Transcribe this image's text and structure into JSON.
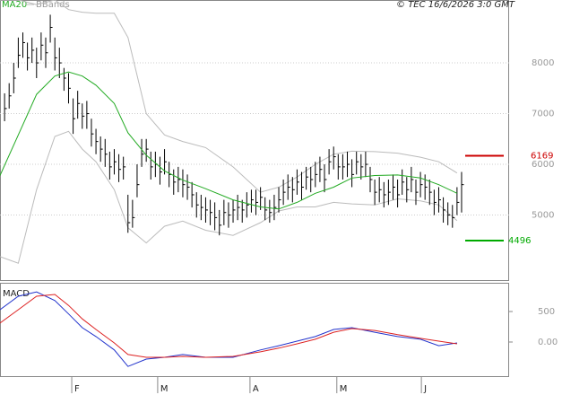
{
  "chart_data": [
    {
      "type": "ohlc",
      "source": "© TEC 16/6/2026 3:0 GMT",
      "xlim": [
        -1,
        110.4
      ],
      "ylim": [
        3700,
        9240
      ],
      "yticks": [
        5000,
        6000,
        7000,
        8000
      ],
      "grid": true,
      "color": "#000000",
      "close": [
        7100,
        7350,
        7700,
        8150,
        8400,
        8100,
        8250,
        8000,
        8350,
        8200,
        8700,
        8100,
        8000,
        7700,
        7500,
        6900,
        7200,
        6950,
        7000,
        6600,
        6450,
        6300,
        6200,
        5950,
        6050,
        5900,
        5950,
        4850,
        4950,
        5600,
        6200,
        6300,
        5950,
        6000,
        5850,
        6050,
        5800,
        5650,
        5700,
        5600,
        5550,
        5400,
        5200,
        5150,
        5100,
        5050,
        4950,
        4800,
        5050,
        5000,
        5100,
        5150,
        5100,
        5200,
        5300,
        5250,
        5350,
        5100,
        5050,
        5150,
        5300,
        5450,
        5550,
        5500,
        5650,
        5550,
        5750,
        5700,
        5800,
        5900,
        5700,
        6050,
        6150,
        5950,
        5950,
        6000,
        5800,
        6050,
        5950,
        6000,
        5700,
        5450,
        5500,
        5400,
        5450,
        5550,
        5400,
        5650,
        5500,
        5700,
        5450,
        5600,
        5550,
        5450,
        5250,
        5300,
        5100,
        5000,
        4950,
        5250,
        5600
      ],
      "high": [
        7400,
        7600,
        8000,
        8500,
        8600,
        8400,
        8500,
        8300,
        8600,
        8500,
        8950,
        8500,
        8300,
        7900,
        7800,
        7300,
        7450,
        7200,
        7250,
        6900,
        6700,
        6550,
        6500,
        6250,
        6300,
        6200,
        6150,
        5400,
        5300,
        6000,
        6500,
        6500,
        6250,
        6250,
        6150,
        6300,
        6050,
        5900,
        5950,
        5900,
        5800,
        5650,
        5450,
        5400,
        5350,
        5300,
        5250,
        5100,
        5300,
        5250,
        5300,
        5400,
        5300,
        5450,
        5500,
        5500,
        5550,
        5350,
        5300,
        5400,
        5550,
        5700,
        5800,
        5750,
        5900,
        5850,
        5950,
        5950,
        6050,
        6150,
        6000,
        6300,
        6350,
        6200,
        6200,
        6250,
        6100,
        6250,
        6200,
        6250,
        5950,
        5700,
        5750,
        5650,
        5700,
        5800,
        5700,
        5900,
        5750,
        5950,
        5700,
        5850,
        5800,
        5700,
        5500,
        5550,
        5350,
        5250,
        5200,
        5550,
        5850
      ],
      "low": [
        6850,
        7100,
        7400,
        7900,
        8100,
        7850,
        8000,
        7700,
        8050,
        7900,
        8400,
        7850,
        7700,
        7450,
        7200,
        6600,
        6900,
        6700,
        6700,
        6350,
        6200,
        6050,
        5950,
        5700,
        5800,
        5650,
        5700,
        4650,
        4750,
        5350,
        5950,
        6050,
        5700,
        5750,
        5600,
        5800,
        5550,
        5400,
        5450,
        5350,
        5300,
        5150,
        4950,
        4900,
        4850,
        4800,
        4700,
        4600,
        4800,
        4750,
        4850,
        4900,
        4850,
        4950,
        5050,
        5000,
        5100,
        4900,
        4850,
        4900,
        5050,
        5200,
        5300,
        5250,
        5400,
        5300,
        5500,
        5450,
        5550,
        5650,
        5450,
        5800,
        5900,
        5700,
        5700,
        5750,
        5550,
        5800,
        5700,
        5750,
        5450,
        5200,
        5250,
        5150,
        5200,
        5300,
        5150,
        5400,
        5250,
        5450,
        5200,
        5350,
        5300,
        5200,
        5000,
        5050,
        4850,
        4800,
        4750,
        5000,
        5050
      ],
      "lines_x": [
        -1,
        3,
        7,
        11,
        14,
        17,
        20,
        24,
        27,
        31,
        35,
        39,
        44,
        50,
        56,
        60,
        64,
        68,
        72,
        76,
        81,
        86,
        91,
        95,
        99
      ],
      "series": [
        {
          "name": "MA20",
          "color": "#22aa22",
          "values": [
            5780,
            6580,
            7380,
            7740,
            7820,
            7740,
            7560,
            7200,
            6620,
            6180,
            5870,
            5690,
            5520,
            5300,
            5160,
            5120,
            5250,
            5430,
            5550,
            5730,
            5780,
            5790,
            5730,
            5600,
            5430
          ]
        },
        {
          "name": "BBands",
          "color": "#bbbbbb",
          "upper": [
            9240,
            9240,
            9150,
            9240,
            9050,
            9000,
            8980,
            8980,
            8500,
            7000,
            6580,
            6450,
            6330,
            5950,
            5450,
            5550,
            5750,
            6000,
            6200,
            6260,
            6250,
            6220,
            6140,
            6050,
            5830
          ],
          "lower": [
            4180,
            4050,
            5500,
            6550,
            6650,
            6300,
            6050,
            5500,
            4750,
            4450,
            4780,
            4880,
            4700,
            4600,
            4850,
            5080,
            5160,
            5160,
            5250,
            5220,
            5200,
            5320,
            5280,
            5200,
            4890
          ]
        }
      ],
      "levels": [
        {
          "value": 6169,
          "color": "#cc0000"
        },
        {
          "value": 4496,
          "color": "#00aa00"
        }
      ]
    },
    {
      "type": "macd",
      "title": "MACD",
      "xlim": [
        -1,
        110.4
      ],
      "ylim": [
        -574,
        956
      ],
      "yticks": [
        {
          "value": 0,
          "label": "0.00"
        },
        500
      ],
      "xticks": [
        {
          "value": 14.7,
          "label": "F"
        },
        {
          "value": 33.5,
          "label": "M"
        },
        {
          "value": 53.7,
          "label": "A"
        },
        {
          "value": 72.7,
          "label": "M"
        },
        {
          "value": 91.2,
          "label": "J"
        }
      ],
      "x": [
        -1,
        3,
        7,
        11,
        14,
        17,
        20,
        24,
        27,
        31,
        35,
        39,
        44,
        50,
        56,
        60,
        64,
        68,
        72,
        76,
        81,
        86,
        91,
        95,
        99
      ],
      "series": [
        {
          "color": "#2233cc",
          "values": [
            530,
            750,
            820,
            680,
            460,
            235,
            90,
            -130,
            -400,
            -280,
            -250,
            -205,
            -250,
            -250,
            -130,
            -60,
            15,
            90,
            205,
            235,
            160,
            90,
            45,
            -60,
            -15
          ]
        },
        {
          "color": "#dd2222",
          "values": [
            310,
            530,
            750,
            780,
            600,
            380,
            205,
            -15,
            -205,
            -250,
            -250,
            -235,
            -250,
            -235,
            -160,
            -100,
            -30,
            45,
            160,
            220,
            190,
            120,
            60,
            15,
            -30
          ]
        }
      ]
    }
  ]
}
